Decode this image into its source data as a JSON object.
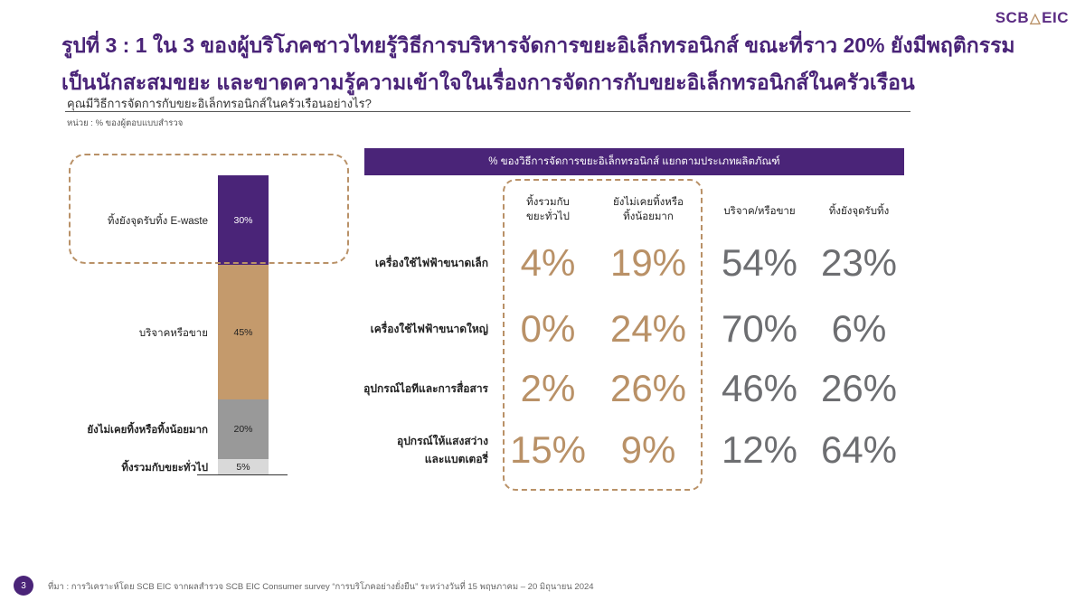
{
  "logo": {
    "left": "SCB",
    "right": "EIC"
  },
  "title": {
    "line1": "รูปที่ 3 : 1 ใน 3 ของผู้บริโภคชาวไทยรู้วิธีการบริหารจัดการขยะอิเล็กทรอนิกส์ ขณะที่ราว 20% ยังมีพฤติกรรม",
    "line2": "เป็นนักสะสมขยะ และขาดความรู้ความเข้าใจในเรื่องการจัดการกับขยะอิเล็กทรอนิกส์ในครัวเรือน"
  },
  "subtitle": "คุณมีวิธีการจัดการกับขยะอิเล็กทรอนิกส์ในครัวเรือนอย่างไร?",
  "unit": "หน่วย : % ของผู้ตอบแบบสำรวจ",
  "colors": {
    "purple": "#4a2478",
    "tan": "#c49a6c",
    "grey": "#999999",
    "lightgrey": "#d9d9d9",
    "gold_text": "#b99167",
    "grey_text": "#6d6e71"
  },
  "chart_data": [
    {
      "type": "bar",
      "stacked": true,
      "series": [
        {
          "label": "ทิ้งยังจุดรับทิ้ง E-waste",
          "value": 30,
          "value_label": "30%",
          "color": "#4a2478",
          "text_color": "#ffffff",
          "label_bold": false
        },
        {
          "label": "บริจาคหรือขาย",
          "value": 45,
          "value_label": "45%",
          "color": "#c49a6c",
          "text_color": "#222222",
          "label_bold": false
        },
        {
          "label": "ยังไม่เคยทิ้งหรือทิ้งน้อยมาก",
          "value": 20,
          "value_label": "20%",
          "color": "#999999",
          "text_color": "#222222",
          "label_bold": true
        },
        {
          "label": "ทิ้งรวมกับขยะทั่วไป",
          "value": 5,
          "value_label": "5%",
          "color": "#d9d9d9",
          "text_color": "#222222",
          "label_bold": true
        }
      ]
    },
    {
      "type": "table",
      "title": "% ของวิธีการจัดการขยะอิเล็กทรอนิกส์ แยกตามประเภทผลิตภัณฑ์",
      "columns": [
        [
          "ทิ้งรวมกับ",
          "ขยะทั่วไป"
        ],
        [
          "ยังไม่เคยทิ้งหรือ",
          "ทิ้งน้อยมาก"
        ],
        [
          "บริจาค/หรือขาย"
        ],
        [
          "ทิ้งยังจุดรับทิ้ง"
        ]
      ],
      "rows": [
        {
          "label": [
            "เครื่องใช้ไฟฟ้าขนาดเล็ก"
          ],
          "values": [
            "4%",
            "19%",
            "54%",
            "23%"
          ]
        },
        {
          "label": [
            "เครื่องใช้ไฟฟ้าขนาดใหญ่"
          ],
          "values": [
            "0%",
            "24%",
            "70%",
            "6%"
          ]
        },
        {
          "label": [
            "อุปกรณ์ไอทีและการสื่อสาร"
          ],
          "values": [
            "2%",
            "26%",
            "46%",
            "26%"
          ]
        },
        {
          "label": [
            "อุปกรณ์ให้แสงสว่าง",
            "และแบตเตอรี่"
          ],
          "values": [
            "15%",
            "9%",
            "12%",
            "64%"
          ]
        }
      ]
    }
  ],
  "footer": {
    "page_number": "3",
    "source": "ที่มา : การวิเคราะห์โดย SCB EIC จากผลสำรวจ SCB EIC Consumer survey “การบริโภคอย่างยั่งยืน” ระหว่างวันที่ 15 พฤษภาคม – 20 มิถุนายน 2024"
  }
}
